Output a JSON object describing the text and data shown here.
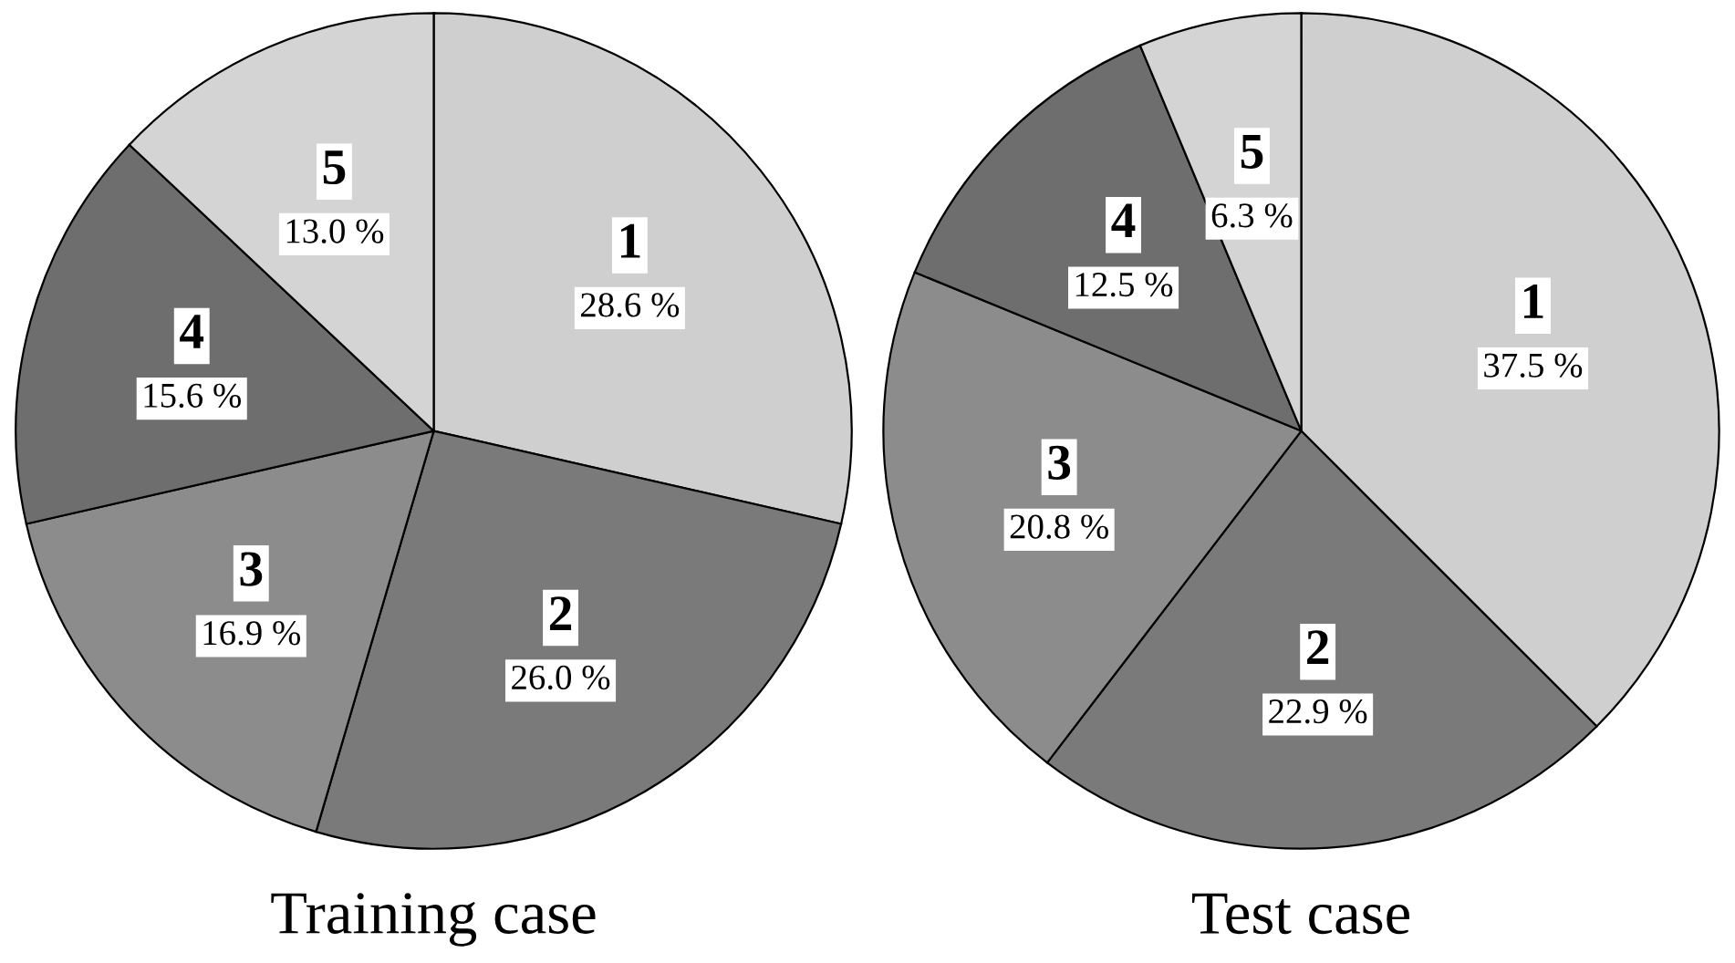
{
  "chart_data": [
    {
      "type": "pie",
      "title": "Training case",
      "categories": [
        "1",
        "2",
        "3",
        "4",
        "5"
      ],
      "values": [
        28.6,
        26.0,
        16.9,
        15.6,
        13.0
      ],
      "value_labels": [
        "28.6 %",
        "26.0 %",
        "16.9 %",
        "15.6 %",
        "13.0 %"
      ],
      "colors": [
        "#cfcfcf",
        "#7a7a7a",
        "#8c8c8c",
        "#6e6e6e",
        "#d4d4d4"
      ],
      "legend": false
    },
    {
      "type": "pie",
      "title": "Test case",
      "categories": [
        "1",
        "2",
        "3",
        "4",
        "5"
      ],
      "values": [
        37.5,
        22.9,
        20.8,
        12.5,
        6.3
      ],
      "value_labels": [
        "37.5 %",
        "22.9 %",
        "20.8 %",
        "12.5 %",
        "6.3 %"
      ],
      "colors": [
        "#cfcfcf",
        "#7a7a7a",
        "#8c8c8c",
        "#6e6e6e",
        "#d4d4d4"
      ],
      "legend": false
    }
  ]
}
